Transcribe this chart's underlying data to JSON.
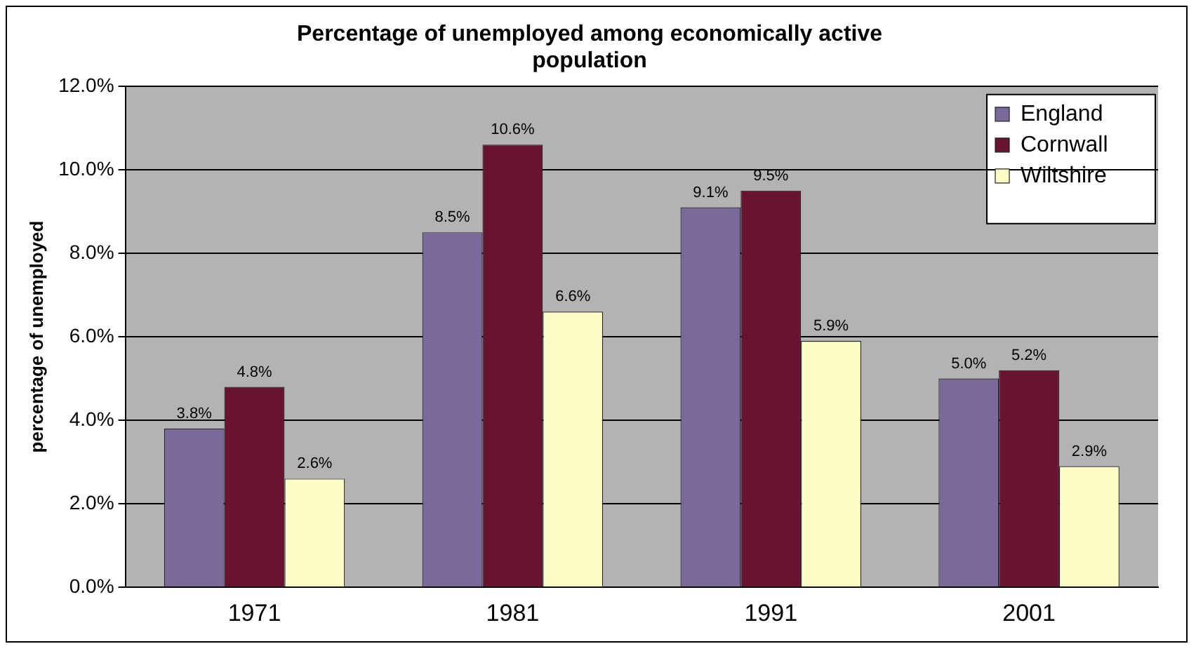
{
  "chart_data": {
    "type": "bar",
    "title": "Percentage of unemployed among economically active population",
    "ylabel": "percentage of unemployed",
    "categories": [
      "1971",
      "1981",
      "1991",
      "2001"
    ],
    "series": [
      {
        "name": "England",
        "color": "#7a6a9c",
        "values": [
          3.8,
          8.5,
          9.1,
          5.0
        ],
        "value_labels": [
          "3.8%",
          "8.5%",
          "9.1%",
          "5.0%"
        ]
      },
      {
        "name": "Cornwall",
        "color": "#6a1232",
        "values": [
          4.8,
          10.6,
          9.5,
          5.2
        ],
        "value_labels": [
          "4.8%",
          "10.6%",
          "9.5%",
          "5.2%"
        ]
      },
      {
        "name": "Wiltshire",
        "color": "#fcfcc4",
        "values": [
          2.6,
          6.6,
          5.9,
          2.9
        ],
        "value_labels": [
          "2.6%",
          "6.6%",
          "5.9%",
          "2.9%"
        ]
      }
    ],
    "ylim": [
      0,
      12
    ],
    "yticks": [
      {
        "value": 0,
        "label": "0.0%"
      },
      {
        "value": 2,
        "label": "2.0%"
      },
      {
        "value": 4,
        "label": "4.0%"
      },
      {
        "value": 6,
        "label": "6.0%"
      },
      {
        "value": 8,
        "label": "8.0%"
      },
      {
        "value": 10,
        "label": "10.0%"
      },
      {
        "value": 12,
        "label": "12.0%"
      }
    ],
    "grid": "y",
    "legend": "top right"
  }
}
